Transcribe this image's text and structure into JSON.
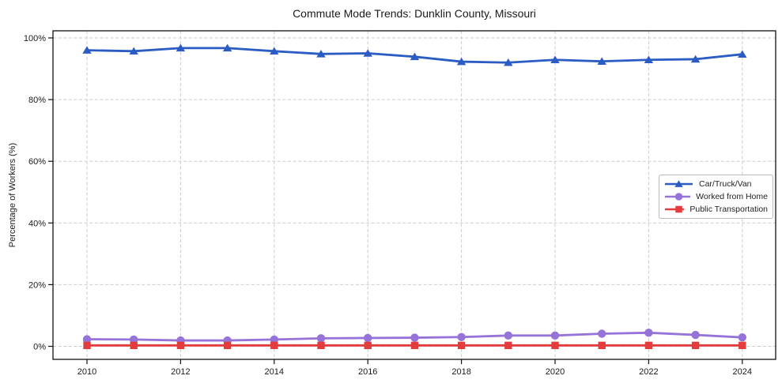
{
  "chart_data": {
    "type": "line",
    "title": "Commute Mode Trends: Dunklin County, Missouri",
    "xlabel": "",
    "ylabel": "Percentage of Workers (%)",
    "x": [
      2010,
      2011,
      2012,
      2013,
      2014,
      2015,
      2016,
      2017,
      2018,
      2019,
      2020,
      2021,
      2022,
      2023,
      2024
    ],
    "x_ticks": [
      {
        "value": 2010,
        "label": "2010"
      },
      {
        "value": 2012,
        "label": "2012"
      },
      {
        "value": 2014,
        "label": "2014"
      },
      {
        "value": 2016,
        "label": "2016"
      },
      {
        "value": 2018,
        "label": "2018"
      },
      {
        "value": 2020,
        "label": "2020"
      },
      {
        "value": 2022,
        "label": "2022"
      },
      {
        "value": 2024,
        "label": "2024"
      }
    ],
    "y_ticks": [
      {
        "value": 0,
        "label": "0%"
      },
      {
        "value": 20,
        "label": "20%"
      },
      {
        "value": 40,
        "label": "40%"
      },
      {
        "value": 60,
        "label": "60%"
      },
      {
        "value": 80,
        "label": "80%"
      },
      {
        "value": 100,
        "label": "100%"
      }
    ],
    "xlim": [
      2009.27,
      2024.72
    ],
    "ylim": [
      -4.2,
      102.3
    ],
    "grid": true,
    "grid_style": "dashed",
    "legend_position": "center-right",
    "series": [
      {
        "name": "Car/Truck/Van",
        "color": "#2b5cc4",
        "marker": "triangle",
        "values": [
          96.0,
          95.7,
          96.7,
          96.7,
          95.7,
          94.8,
          95.0,
          93.9,
          92.3,
          92.0,
          92.9,
          92.4,
          92.9,
          93.1,
          94.7
        ]
      },
      {
        "name": "Worked from Home",
        "color": "#9673d8",
        "marker": "circle",
        "values": [
          2.3,
          2.2,
          1.9,
          1.9,
          2.2,
          2.6,
          2.7,
          2.8,
          3.0,
          3.5,
          3.5,
          4.1,
          4.4,
          3.7,
          2.9
        ]
      },
      {
        "name": "Public Transportation",
        "color": "#e23c3c",
        "marker": "square",
        "values": [
          0.3,
          0.3,
          0.3,
          0.3,
          0.3,
          0.3,
          0.3,
          0.3,
          0.3,
          0.3,
          0.3,
          0.3,
          0.3,
          0.3,
          0.3
        ]
      }
    ]
  }
}
